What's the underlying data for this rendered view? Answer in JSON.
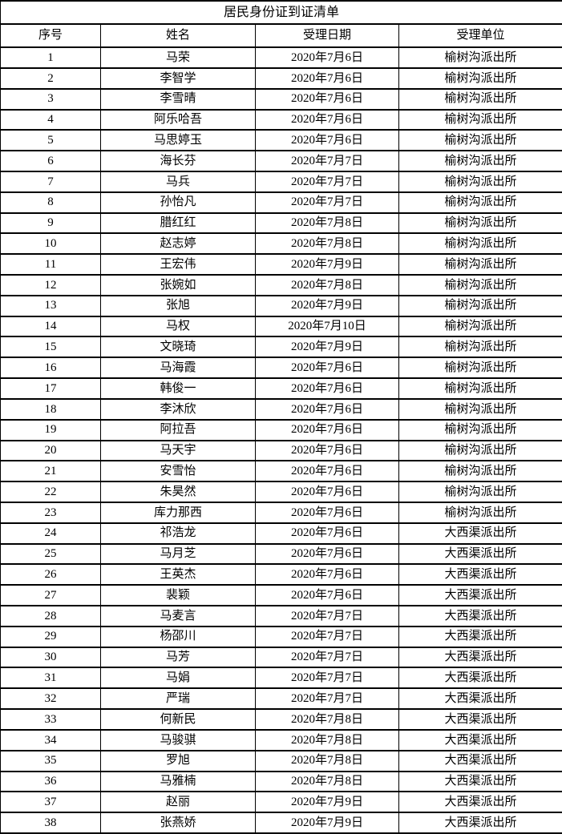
{
  "document": {
    "title": "居民身份证到证清单",
    "columns": [
      "序号",
      "姓名",
      "受理日期",
      "受理单位"
    ],
    "rows": [
      {
        "no": "1",
        "name": "马荣",
        "date": "2020年7月6日",
        "unit": "榆树沟派出所"
      },
      {
        "no": "2",
        "name": "李智学",
        "date": "2020年7月6日",
        "unit": "榆树沟派出所"
      },
      {
        "no": "3",
        "name": "李雪晴",
        "date": "2020年7月6日",
        "unit": "榆树沟派出所"
      },
      {
        "no": "4",
        "name": "阿乐哈吾",
        "date": "2020年7月6日",
        "unit": "榆树沟派出所"
      },
      {
        "no": "5",
        "name": "马思婷玉",
        "date": "2020年7月6日",
        "unit": "榆树沟派出所"
      },
      {
        "no": "6",
        "name": "海长芬",
        "date": "2020年7月7日",
        "unit": "榆树沟派出所"
      },
      {
        "no": "7",
        "name": "马兵",
        "date": "2020年7月7日",
        "unit": "榆树沟派出所"
      },
      {
        "no": "8",
        "name": "孙怡凡",
        "date": "2020年7月7日",
        "unit": "榆树沟派出所"
      },
      {
        "no": "9",
        "name": "腊红红",
        "date": "2020年7月8日",
        "unit": "榆树沟派出所"
      },
      {
        "no": "10",
        "name": "赵志婷",
        "date": "2020年7月8日",
        "unit": "榆树沟派出所"
      },
      {
        "no": "11",
        "name": "王宏伟",
        "date": "2020年7月9日",
        "unit": "榆树沟派出所"
      },
      {
        "no": "12",
        "name": "张婉如",
        "date": "2020年7月8日",
        "unit": "榆树沟派出所"
      },
      {
        "no": "13",
        "name": "张旭",
        "date": "2020年7月9日",
        "unit": "榆树沟派出所"
      },
      {
        "no": "14",
        "name": "马权",
        "date": "2020年7月10日",
        "unit": "榆树沟派出所"
      },
      {
        "no": "15",
        "name": "文晓琦",
        "date": "2020年7月9日",
        "unit": "榆树沟派出所"
      },
      {
        "no": "16",
        "name": "马海霞",
        "date": "2020年7月6日",
        "unit": "榆树沟派出所"
      },
      {
        "no": "17",
        "name": "韩俊一",
        "date": "2020年7月6日",
        "unit": "榆树沟派出所"
      },
      {
        "no": "18",
        "name": "李沐欣",
        "date": "2020年7月6日",
        "unit": "榆树沟派出所"
      },
      {
        "no": "19",
        "name": "阿拉吾",
        "date": "2020年7月6日",
        "unit": "榆树沟派出所"
      },
      {
        "no": "20",
        "name": "马天宇",
        "date": "2020年7月6日",
        "unit": "榆树沟派出所"
      },
      {
        "no": "21",
        "name": "安雪怡",
        "date": "2020年7月6日",
        "unit": "榆树沟派出所"
      },
      {
        "no": "22",
        "name": "朱昊然",
        "date": "2020年7月6日",
        "unit": "榆树沟派出所"
      },
      {
        "no": "23",
        "name": "库力那西",
        "date": "2020年7月6日",
        "unit": "榆树沟派出所"
      },
      {
        "no": "24",
        "name": "祁浩龙",
        "date": "2020年7月6日",
        "unit": "大西渠派出所"
      },
      {
        "no": "25",
        "name": "马月芝",
        "date": "2020年7月6日",
        "unit": "大西渠派出所"
      },
      {
        "no": "26",
        "name": "王英杰",
        "date": "2020年7月6日",
        "unit": "大西渠派出所"
      },
      {
        "no": "27",
        "name": "裴颖",
        "date": "2020年7月6日",
        "unit": "大西渠派出所"
      },
      {
        "no": "28",
        "name": "马麦言",
        "date": "2020年7月7日",
        "unit": "大西渠派出所"
      },
      {
        "no": "29",
        "name": "杨邵川",
        "date": "2020年7月7日",
        "unit": "大西渠派出所"
      },
      {
        "no": "30",
        "name": "马芳",
        "date": "2020年7月7日",
        "unit": "大西渠派出所"
      },
      {
        "no": "31",
        "name": "马娟",
        "date": "2020年7月7日",
        "unit": "大西渠派出所"
      },
      {
        "no": "32",
        "name": "严瑞",
        "date": "2020年7月7日",
        "unit": "大西渠派出所"
      },
      {
        "no": "33",
        "name": "何新民",
        "date": "2020年7月8日",
        "unit": "大西渠派出所"
      },
      {
        "no": "34",
        "name": "马骏骐",
        "date": "2020年7月8日",
        "unit": "大西渠派出所"
      },
      {
        "no": "35",
        "name": "罗旭",
        "date": "2020年7月8日",
        "unit": "大西渠派出所"
      },
      {
        "no": "36",
        "name": "马雅楠",
        "date": "2020年7月8日",
        "unit": "大西渠派出所"
      },
      {
        "no": "37",
        "name": "赵丽",
        "date": "2020年7月9日",
        "unit": "大西渠派出所"
      },
      {
        "no": "38",
        "name": "张燕娇",
        "date": "2020年7月9日",
        "unit": "大西渠派出所"
      }
    ]
  },
  "colors": {
    "border": "#000000",
    "text": "#000000",
    "background": "#ffffff"
  }
}
